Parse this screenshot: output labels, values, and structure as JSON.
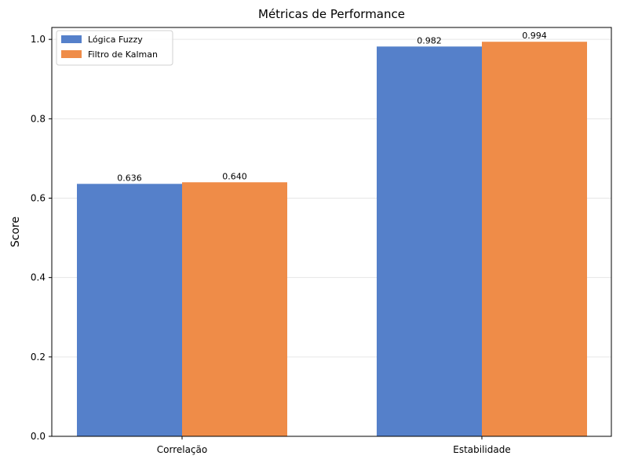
{
  "chart_data": {
    "type": "bar",
    "title": "Métricas de Performance",
    "xlabel": "",
    "ylabel": "Score",
    "categories": [
      "Correlação",
      "Estabilidade"
    ],
    "series": [
      {
        "name": "Lógica Fuzzy",
        "values": [
          0.636,
          0.982
        ],
        "labels": [
          "0.636",
          "0.982"
        ],
        "color": "#5580ca"
      },
      {
        "name": "Filtro de Kalman",
        "values": [
          0.64,
          0.994
        ],
        "labels": [
          "0.640",
          "0.994"
        ],
        "color": "#ef8c48"
      }
    ],
    "ylim": [
      0,
      1.03
    ],
    "yticks": [
      0.0,
      0.2,
      0.4,
      0.6,
      0.8,
      1.0
    ],
    "ytick_labels": [
      "0.0",
      "0.2",
      "0.4",
      "0.6",
      "0.8",
      "1.0"
    ],
    "grid": "horizontal",
    "legend_position": "top-left"
  }
}
